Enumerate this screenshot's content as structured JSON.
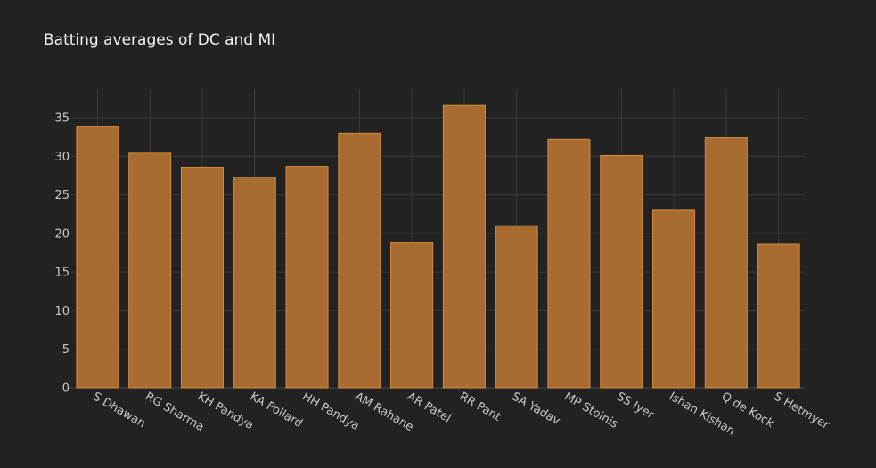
{
  "chart_data": {
    "type": "bar",
    "title": "Batting averages of DC and MI",
    "xlabel": "",
    "ylabel": "",
    "categories": [
      "S Dhawan",
      "RG Sharma",
      "KH Pandya",
      "KA Pollard",
      "HH Pandya",
      "AM Rahane",
      "AR Patel",
      "RR Pant",
      "SA Yadav",
      "MP Stoinis",
      "SS Iyer",
      "Ishan Kishan",
      "Q de Kock",
      "S Hetmyer"
    ],
    "values": [
      33.9,
      30.4,
      28.6,
      27.3,
      28.7,
      33.0,
      18.8,
      36.6,
      21.0,
      32.2,
      30.1,
      23.0,
      32.4,
      18.6
    ],
    "ylim": [
      0,
      38.7
    ],
    "yticks": [
      0,
      5,
      10,
      15,
      20,
      25,
      30,
      35
    ],
    "grid": true,
    "legend": "none",
    "bar_color": "#a86b30",
    "bar_edge_color": "#d68a3c",
    "background_color": "#222222"
  }
}
